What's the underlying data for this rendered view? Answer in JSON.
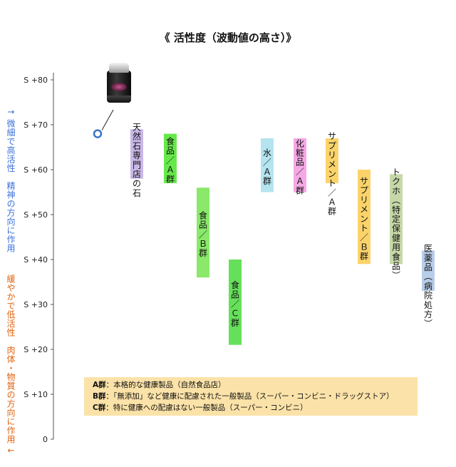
{
  "title": "《 活性度（波動値の高さ）》",
  "side_labels": {
    "upper": "↑ 微細で高活性　精神の方向に作用",
    "lower": "緩やかで低活性　肉体・物質の方向に作用 ↓"
  },
  "chart_data": {
    "type": "bar",
    "title": "《 活性度（波動値の高さ）》",
    "ylim": [
      0,
      80
    ],
    "y_ticks": [
      "0",
      "S +10",
      "S +20",
      "S +30",
      "S +40",
      "S +50",
      "S +60",
      "S +70",
      "S +80"
    ],
    "grid": false,
    "point": {
      "value": 68,
      "color": "#3a76c8",
      "icon": "jar-product-image"
    },
    "bars": [
      {
        "label": "天然石専門店の石",
        "low": 58,
        "high": 69,
        "color": "#c9b8e8"
      },
      {
        "label": "食品／Ａ群",
        "low": 57,
        "high": 68,
        "color": "#66e84a"
      },
      {
        "label": "食品／Ｂ群",
        "low": 36,
        "high": 56,
        "color": "#8ae86a"
      },
      {
        "label": "食品／Ｃ群",
        "low": 21,
        "high": 40,
        "color": "#66e05a"
      },
      {
        "label": "水／Ａ群",
        "low": 55,
        "high": 67,
        "color": "#b4e4f0"
      },
      {
        "label": "化粧品／Ａ群",
        "low": 55,
        "high": 67,
        "color": "#f6a8e6"
      },
      {
        "label": "サプリメント／Ａ群",
        "low": 57,
        "high": 67,
        "color": "#fbd36a"
      },
      {
        "label": "サプリメント／Ｂ群",
        "low": 39,
        "high": 60,
        "color": "#fbd36a"
      },
      {
        "label": "トクホ（特定保健用食品）",
        "low": 39,
        "high": 59,
        "color": "#c6d8a8"
      },
      {
        "label": "医薬品（病院処方）",
        "low": 33,
        "high": 42,
        "color": "#b8cde8"
      }
    ]
  },
  "legend": [
    {
      "key": "A群",
      "text": "：本格的な健康製品（自然食品店）"
    },
    {
      "key": "B群",
      "text": "：「無添加」など健康に配慮された一般製品（スーパー・コンビニ・ドラッグストア）"
    },
    {
      "key": "C群",
      "text": "：特に健康への配慮はない一般製品（スーパー・コンビニ）"
    }
  ]
}
